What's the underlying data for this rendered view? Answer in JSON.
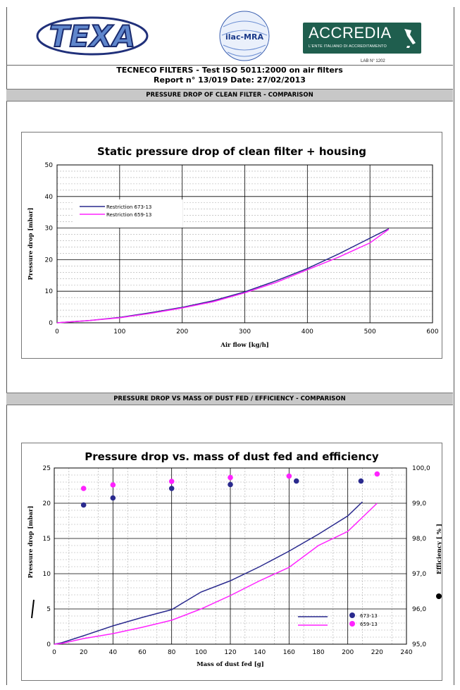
{
  "header": {
    "texa_logo_text": "TEXA",
    "ilac_logo_text": "ilac-MRA",
    "accredia_logo_text": "ACCREDIA",
    "accredia_subtext": "L'ENTE ITALIANO DI ACCREDITAMENTO",
    "lab_number": "LAB N° 1202",
    "title_line1": "TECNECO FILTERS - Test ISO 5011:2000 on air filters",
    "title_line2": "Report n° 13/019  Date: 27/02/2013",
    "section1_bar": "PRESSURE DROP OF CLEAN FILTER - COMPARISON",
    "section2_bar": "PRESSURE DROP VS MASS OF DUST FED / EFFICIENCY - COMPARISON"
  },
  "colors": {
    "series_a": "#2a2a8e",
    "series_b": "#ff22ff",
    "grid": "#000000",
    "bar_bg": "#c8c8c8"
  },
  "chart_data": [
    {
      "type": "line",
      "title": "Static pressure drop of clean filter + housing",
      "xlabel": "Air flow [kg/h]",
      "ylabel": "Pressure drop [mbar]",
      "xlim": [
        0,
        600
      ],
      "ylim": [
        0,
        50
      ],
      "xticks": [
        0,
        100,
        200,
        300,
        400,
        500,
        600
      ],
      "yticks": [
        0,
        10,
        20,
        30,
        40,
        50
      ],
      "grid": true,
      "legend_position": "upper-left",
      "series": [
        {
          "name": "Restriction 673-13",
          "x": [
            0,
            50,
            100,
            150,
            200,
            250,
            300,
            350,
            400,
            450,
            500,
            530
          ],
          "y": [
            0,
            0.7,
            1.7,
            3.2,
            4.9,
            7.0,
            9.8,
            13.3,
            17.2,
            21.8,
            26.8,
            29.8
          ]
        },
        {
          "name": "Restriction 659-13",
          "x": [
            0,
            50,
            100,
            150,
            200,
            250,
            300,
            350,
            400,
            450,
            500,
            530
          ],
          "y": [
            0,
            0.7,
            1.6,
            3.0,
            4.7,
            6.7,
            9.5,
            12.8,
            16.8,
            20.8,
            25.3,
            29.6
          ]
        }
      ]
    },
    {
      "type": "line",
      "title": "Pressure drop vs. mass of dust fed and efficiency",
      "xlabel": "Mass of dust fed [g]",
      "ylabel": "Pressure drop [mbar]",
      "y2label": "Efficiency [ % ]",
      "xlim": [
        0,
        240
      ],
      "ylim": [
        0,
        25
      ],
      "y2lim": [
        95.0,
        100.0
      ],
      "xticks": [
        0,
        20,
        40,
        60,
        80,
        100,
        120,
        140,
        160,
        180,
        200,
        220,
        240
      ],
      "yticks": [
        0,
        5,
        10,
        15,
        20,
        25
      ],
      "y2ticks": [
        "95,0",
        "96,0",
        "97,0",
        "98,0",
        "99,0",
        "100,0"
      ],
      "grid": true,
      "legend_position": "lower-right",
      "series": [
        {
          "name": "673-13",
          "x": [
            0,
            5,
            20,
            40,
            60,
            80,
            100,
            120,
            140,
            160,
            180,
            200,
            210
          ],
          "y": [
            0,
            0.2,
            1.2,
            2.6,
            3.8,
            4.9,
            7.4,
            9.0,
            11.0,
            13.2,
            15.6,
            18.2,
            20.2
          ],
          "efficiency_x": [
            20,
            40,
            80,
            120,
            165,
            209
          ],
          "efficiency": [
            98.95,
            99.15,
            99.42,
            99.53,
            99.63,
            99.63
          ]
        },
        {
          "name": "659-13",
          "x": [
            0,
            5,
            20,
            40,
            60,
            80,
            100,
            120,
            140,
            160,
            180,
            200,
            220
          ],
          "y": [
            0,
            0.1,
            0.8,
            1.5,
            2.4,
            3.4,
            5.0,
            6.9,
            9.0,
            10.9,
            14.0,
            16.0,
            20.0
          ],
          "efficiency_x": [
            20,
            40,
            80,
            120,
            160,
            220
          ],
          "efficiency": [
            99.42,
            99.52,
            99.62,
            99.73,
            99.77,
            99.83
          ]
        }
      ]
    }
  ]
}
